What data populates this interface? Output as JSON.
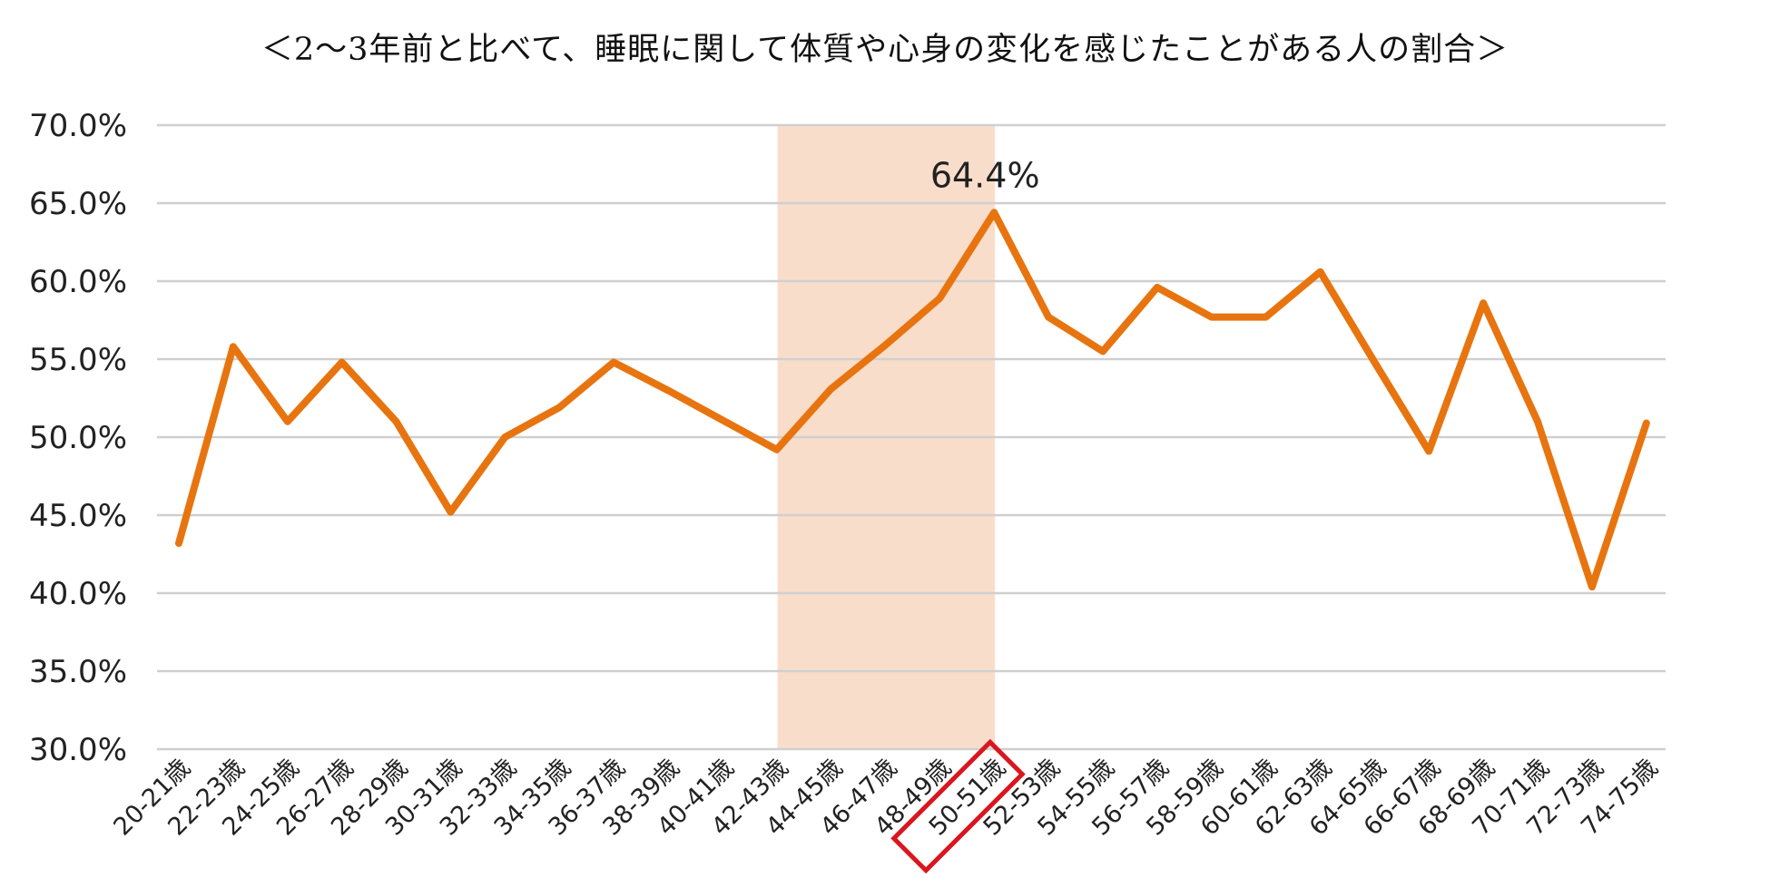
{
  "chart_data": {
    "type": "line",
    "title": "＜2～3年前と比べて、睡眠に関して体質や心身の変化を感じたことがある人の割合＞",
    "xlabel": "",
    "ylabel": "",
    "ylim": [
      30,
      70
    ],
    "ytick_labels": [
      "30.0%",
      "35.0%",
      "40.0%",
      "45.0%",
      "50.0%",
      "55.0%",
      "60.0%",
      "65.0%",
      "70.0%"
    ],
    "grid": true,
    "categories": [
      "20-21歳",
      "22-23歳",
      "24-25歳",
      "26-27歳",
      "28-29歳",
      "30-31歳",
      "32-33歳",
      "34-35歳",
      "36-37歳",
      "38-39歳",
      "40-41歳",
      "42-43歳",
      "44-45歳",
      "46-47歳",
      "48-49歳",
      "50-51歳",
      "52-53歳",
      "54-55歳",
      "56-57歳",
      "58-59歳",
      "60-61歳",
      "62-63歳",
      "64-65歳",
      "66-67歳",
      "68-69歳",
      "70-71歳",
      "72-73歳",
      "74-75歳"
    ],
    "series": [
      {
        "values": [
          43.2,
          55.8,
          51.0,
          54.8,
          51.0,
          45.2,
          50.0,
          51.9,
          54.8,
          53.0,
          51.1,
          49.2,
          53.1,
          55.9,
          58.9,
          64.4,
          57.7,
          55.5,
          59.6,
          57.7,
          57.7,
          60.6,
          54.8,
          49.1,
          58.6,
          51.0,
          40.4,
          50.9
        ],
        "color": "#E8740F"
      }
    ],
    "highlight_band": {
      "from_category": "42-43歳",
      "to_category": "50-51歳",
      "color": "#F9DDCB"
    },
    "annotations": [
      {
        "category": "50-51歳",
        "text": "64.4%"
      }
    ],
    "boxed_category": {
      "category": "50-51歳",
      "color": "#D9161E"
    }
  }
}
